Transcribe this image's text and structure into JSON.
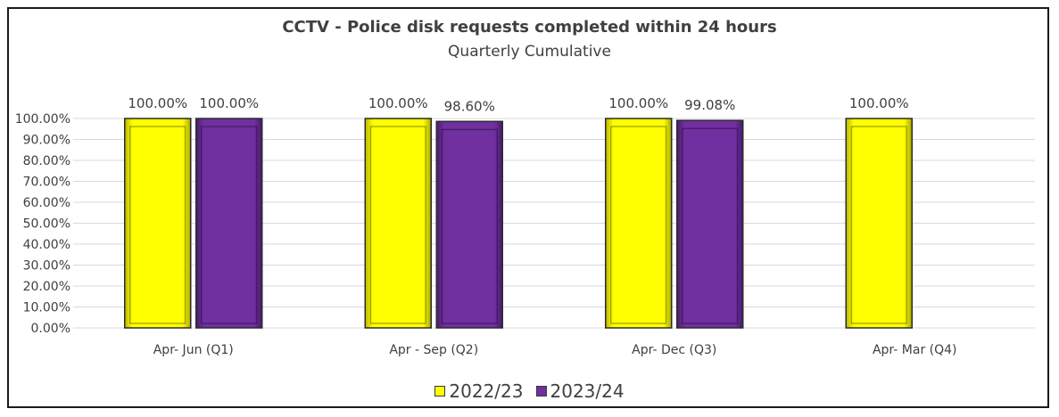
{
  "chart_data": {
    "type": "bar",
    "title": "CCTV - Police disk requests completed within 24 hours",
    "subtitle": "Quarterly Cumulative",
    "categories": [
      "Apr- Jun  (Q1)",
      "Apr - Sep  (Q2)",
      "Apr- Dec  (Q3)",
      "Apr- Mar  (Q4)"
    ],
    "series": [
      {
        "name": "2022/23",
        "color": "#ffff00",
        "values": [
          100.0,
          100.0,
          100.0,
          100.0
        ],
        "labels": [
          "100.00%",
          "100.00%",
          "100.00%",
          "100.00%"
        ]
      },
      {
        "name": "2023/24",
        "color": "#7030a0",
        "values": [
          100.0,
          98.6,
          99.08,
          null
        ],
        "labels": [
          "100.00%",
          "98.60%",
          "99.08%",
          ""
        ]
      }
    ],
    "ylim": [
      0,
      100
    ],
    "yticks": [
      "0.00%",
      "10.00%",
      "20.00%",
      "30.00%",
      "40.00%",
      "50.00%",
      "60.00%",
      "70.00%",
      "80.00%",
      "90.00%",
      "100.00%"
    ],
    "grid": true,
    "legend_position": "bottom"
  }
}
